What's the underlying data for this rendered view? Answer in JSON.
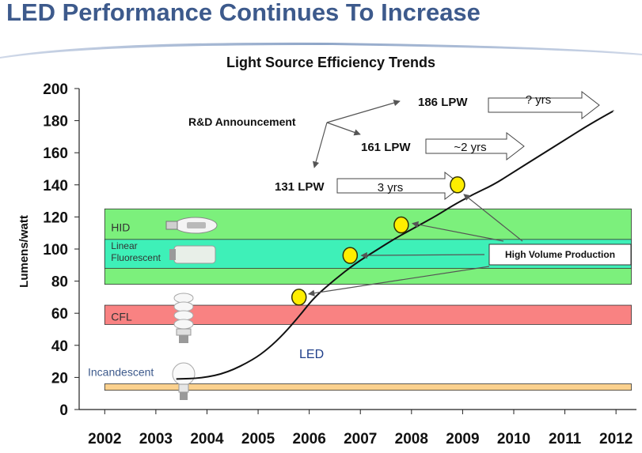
{
  "slide": {
    "title": "LED Performance Continues To Increase"
  },
  "colors": {
    "title": "#3d5a8c",
    "hid_band": "#7cf07c",
    "fluorescent_band": "#3ef0b8",
    "cfl_band": "#f98282",
    "incandescent_band": "#fbd18e",
    "marker_fill": "#ffee00",
    "marker_stroke": "#333300"
  },
  "chart_data": {
    "type": "line",
    "title": "Light Source Efficiency Trends",
    "ylabel": "Lumens/watt",
    "xlabel": "",
    "x_ticks": [
      "2002",
      "2003",
      "2004",
      "2005",
      "2006",
      "2007",
      "2008",
      "2009",
      "2010",
      "2011",
      "2012"
    ],
    "y_ticks": [
      "0",
      "20",
      "40",
      "60",
      "80",
      "100",
      "120",
      "140",
      "160",
      "180",
      "200"
    ],
    "xlim": [
      2001.5,
      2012.4
    ],
    "ylim": [
      0,
      200
    ],
    "grid": false,
    "bands": [
      {
        "label": "HID",
        "x_from": 2002,
        "x_to": 2012.3,
        "y_from": 78,
        "y_to": 125,
        "color": "#7cf07c",
        "icon": "hid-lamp-icon"
      },
      {
        "label_lines": [
          "Linear",
          "Fluorescent"
        ],
        "x_from": 2002,
        "x_to": 2012.3,
        "y_from": 88,
        "y_to": 106,
        "color": "#3ef0b8",
        "icon": "fluorescent-tube-icon"
      },
      {
        "label": "CFL",
        "x_from": 2002,
        "x_to": 2012.3,
        "y_from": 53,
        "y_to": 65,
        "color": "#f98282",
        "icon": "cfl-bulb-icon"
      },
      {
        "label": "Incandescent",
        "x_from": 2002,
        "x_to": 2012.3,
        "y_from": 12,
        "y_to": 16,
        "color": "#fbd18e",
        "icon": "incandescent-bulb-icon"
      }
    ],
    "series": [
      {
        "name": "LED",
        "x": [
          2003.4,
          2003.9,
          2004.4,
          2004.9,
          2005.2,
          2005.5,
          2005.8,
          2006.1,
          2006.5,
          2006.9,
          2007.3,
          2007.7,
          2008.1,
          2008.5,
          2008.8,
          2009.2,
          2009.6,
          2010.0,
          2010.5,
          2011.0,
          2011.5,
          2011.95
        ],
        "y": [
          19,
          19.5,
          23,
          31,
          38,
          47,
          58,
          70,
          81,
          91,
          99,
          107,
          114,
          121,
          127,
          134,
          140,
          148,
          158,
          168,
          178,
          186
        ]
      }
    ],
    "markers": [
      {
        "x": 2005.8,
        "y": 70
      },
      {
        "x": 2006.8,
        "y": 96
      },
      {
        "x": 2007.8,
        "y": 115
      },
      {
        "x": 2008.9,
        "y": 140
      }
    ],
    "led_label": "LED",
    "rd": {
      "label": "R&D Announcement",
      "items": [
        {
          "label": "186 LPW",
          "arrow_text": "? yrs"
        },
        {
          "label": "161 LPW",
          "arrow_text": "~2 yrs"
        },
        {
          "label": "131 LPW",
          "arrow_text": "3 yrs"
        }
      ]
    },
    "hvp_label": "High Volume Production"
  }
}
